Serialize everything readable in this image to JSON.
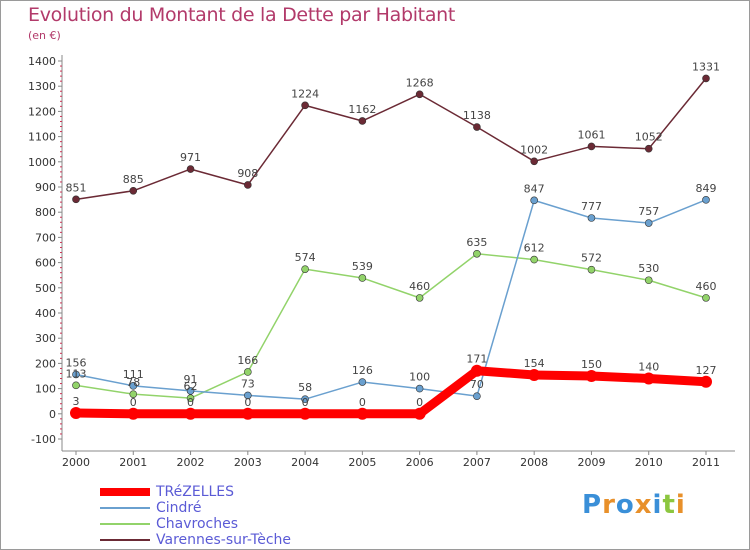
{
  "chart_data": {
    "type": "line",
    "title": "Evolution du Montant de la Dette par Habitant",
    "subtitle": "(en €)",
    "x": [
      "2000",
      "2001",
      "2002",
      "2003",
      "2004",
      "2005",
      "2006",
      "2007",
      "2008",
      "2009",
      "2010",
      "2011"
    ],
    "ylim": [
      -100,
      1400
    ],
    "yticks": [
      -100,
      0,
      100,
      200,
      300,
      400,
      500,
      600,
      700,
      800,
      900,
      1000,
      1100,
      1200,
      1300,
      1400
    ],
    "grid": false,
    "legend_position": "bottom-left",
    "series": [
      {
        "name": "TRéZELLES",
        "color": "#ff0000",
        "values": [
          3,
          0,
          0,
          0,
          0,
          0,
          0,
          171,
          154,
          150,
          140,
          127
        ],
        "labels": [
          "3",
          "0",
          "0",
          "0",
          "0",
          "0",
          "0",
          "171",
          "154",
          "150",
          "140",
          "127"
        ]
      },
      {
        "name": "Cindré",
        "color": "#6aa0cf",
        "values": [
          156,
          111,
          91,
          73,
          58,
          126,
          100,
          70,
          847,
          777,
          757,
          849
        ],
        "labels": [
          "156",
          "111",
          "91",
          "73",
          "58",
          "126",
          "100",
          "70",
          "847",
          "777",
          "757",
          "849"
        ]
      },
      {
        "name": "Chavroches",
        "color": "#92d36a",
        "values": [
          113,
          78,
          62,
          166,
          574,
          539,
          460,
          635,
          612,
          572,
          530,
          460
        ],
        "labels": [
          "113",
          "78",
          "62",
          "166",
          "574",
          "539",
          "460",
          "635",
          "612",
          "572",
          "530",
          "460"
        ]
      },
      {
        "name": "Varennes-sur-Tèche",
        "color": "#6b2a35",
        "values": [
          851,
          885,
          971,
          908,
          1224,
          1162,
          1268,
          1138,
          1002,
          1061,
          1052,
          1331
        ],
        "labels": [
          "851",
          "885",
          "971",
          "908",
          "1224",
          "1162",
          "1268",
          "1138",
          "1002",
          "1061",
          "1052",
          "1331"
        ]
      }
    ]
  },
  "logo": {
    "letters": [
      "P",
      "r",
      "o",
      "x",
      "i",
      "t",
      "i"
    ],
    "colors": [
      "#3a8fd8",
      "#e8902a",
      "#3a8fd8",
      "#e8902a",
      "#3a8fd8",
      "#8cc63f",
      "#e8902a"
    ]
  }
}
